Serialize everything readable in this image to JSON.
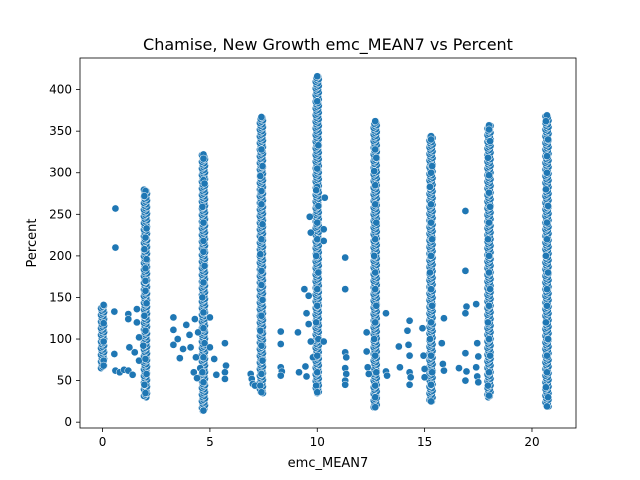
{
  "chart_data": {
    "type": "scatter",
    "title": "Chamise, New Growth emc_MEAN7 vs Percent",
    "xlabel": "emc_MEAN7",
    "ylabel": "Percent",
    "xlim": [
      -1.05,
      22.05
    ],
    "ylim": [
      -7,
      438
    ],
    "x_ticks": [
      0,
      5,
      10,
      15,
      20
    ],
    "y_ticks": [
      0,
      50,
      100,
      150,
      200,
      250,
      300,
      350,
      400
    ],
    "grid": false,
    "legend": "none",
    "marker_color": "#1f77b4",
    "marker_edge_color": "#ffffff",
    "columns": [
      {
        "x": 0.0,
        "min": 65,
        "max": 141
      },
      {
        "x": 2.0,
        "min": 30,
        "max": 280
      },
      {
        "x": 4.7,
        "min": 14,
        "max": 322
      },
      {
        "x": 7.4,
        "min": 35,
        "max": 367
      },
      {
        "x": 10.0,
        "min": 35,
        "max": 416
      },
      {
        "x": 12.7,
        "min": 18,
        "max": 362
      },
      {
        "x": 15.3,
        "min": 25,
        "max": 344
      },
      {
        "x": 18.0,
        "min": 30,
        "max": 357
      },
      {
        "x": 20.7,
        "min": 19,
        "max": 369
      }
    ],
    "points": [
      {
        "x": 0.05,
        "y": 141
      },
      {
        "x": 0.05,
        "y": 119
      },
      {
        "x": 0.05,
        "y": 97
      },
      {
        "x": 0.05,
        "y": 74
      },
      {
        "x": 0.05,
        "y": 68
      },
      {
        "x": 0.6,
        "y": 257
      },
      {
        "x": 0.6,
        "y": 210
      },
      {
        "x": 0.55,
        "y": 133
      },
      {
        "x": 0.55,
        "y": 82
      },
      {
        "x": 0.6,
        "y": 62
      },
      {
        "x": 0.8,
        "y": 60
      },
      {
        "x": 1.0,
        "y": 63
      },
      {
        "x": 1.2,
        "y": 62
      },
      {
        "x": 1.25,
        "y": 90
      },
      {
        "x": 1.2,
        "y": 130
      },
      {
        "x": 1.2,
        "y": 124
      },
      {
        "x": 1.4,
        "y": 57
      },
      {
        "x": 1.5,
        "y": 84
      },
      {
        "x": 1.6,
        "y": 120
      },
      {
        "x": 1.6,
        "y": 136
      },
      {
        "x": 1.7,
        "y": 102
      },
      {
        "x": 1.7,
        "y": 74
      },
      {
        "x": 2.0,
        "y": 278
      },
      {
        "x": 1.95,
        "y": 272
      },
      {
        "x": 2.05,
        "y": 233
      },
      {
        "x": 2.0,
        "y": 222
      },
      {
        "x": 1.95,
        "y": 208
      },
      {
        "x": 2.05,
        "y": 196
      },
      {
        "x": 2.0,
        "y": 185
      },
      {
        "x": 2.0,
        "y": 170
      },
      {
        "x": 2.0,
        "y": 158
      },
      {
        "x": 2.05,
        "y": 143
      },
      {
        "x": 1.95,
        "y": 128
      },
      {
        "x": 2.0,
        "y": 110
      },
      {
        "x": 1.9,
        "y": 92
      },
      {
        "x": 2.0,
        "y": 76
      },
      {
        "x": 2.05,
        "y": 58
      },
      {
        "x": 1.95,
        "y": 45
      },
      {
        "x": 2.0,
        "y": 35
      },
      {
        "x": 3.3,
        "y": 126
      },
      {
        "x": 3.3,
        "y": 111
      },
      {
        "x": 3.3,
        "y": 93
      },
      {
        "x": 3.5,
        "y": 100
      },
      {
        "x": 3.6,
        "y": 77
      },
      {
        "x": 3.75,
        "y": 88
      },
      {
        "x": 3.9,
        "y": 117
      },
      {
        "x": 4.05,
        "y": 105
      },
      {
        "x": 4.1,
        "y": 90
      },
      {
        "x": 4.25,
        "y": 60
      },
      {
        "x": 4.3,
        "y": 124
      },
      {
        "x": 4.35,
        "y": 78
      },
      {
        "x": 4.45,
        "y": 108
      },
      {
        "x": 4.55,
        "y": 65
      },
      {
        "x": 4.4,
        "y": 53
      },
      {
        "x": 4.7,
        "y": 322
      },
      {
        "x": 4.7,
        "y": 317
      },
      {
        "x": 4.7,
        "y": 291
      },
      {
        "x": 4.75,
        "y": 287
      },
      {
        "x": 4.65,
        "y": 259
      },
      {
        "x": 4.7,
        "y": 240
      },
      {
        "x": 4.7,
        "y": 218
      },
      {
        "x": 4.7,
        "y": 205
      },
      {
        "x": 4.75,
        "y": 188
      },
      {
        "x": 4.7,
        "y": 168
      },
      {
        "x": 4.65,
        "y": 150
      },
      {
        "x": 4.7,
        "y": 132
      },
      {
        "x": 4.7,
        "y": 113
      },
      {
        "x": 4.75,
        "y": 95
      },
      {
        "x": 4.7,
        "y": 78
      },
      {
        "x": 4.65,
        "y": 60
      },
      {
        "x": 4.7,
        "y": 48
      },
      {
        "x": 4.7,
        "y": 14
      },
      {
        "x": 5.0,
        "y": 126
      },
      {
        "x": 5.0,
        "y": 90
      },
      {
        "x": 5.2,
        "y": 76
      },
      {
        "x": 5.3,
        "y": 57
      },
      {
        "x": 5.7,
        "y": 95
      },
      {
        "x": 5.75,
        "y": 68
      },
      {
        "x": 5.7,
        "y": 60
      },
      {
        "x": 5.7,
        "y": 52
      },
      {
        "x": 6.9,
        "y": 58
      },
      {
        "x": 6.95,
        "y": 52
      },
      {
        "x": 7.0,
        "y": 46
      },
      {
        "x": 7.1,
        "y": 44
      },
      {
        "x": 7.4,
        "y": 367
      },
      {
        "x": 7.4,
        "y": 328
      },
      {
        "x": 7.45,
        "y": 308
      },
      {
        "x": 7.35,
        "y": 296
      },
      {
        "x": 7.4,
        "y": 278
      },
      {
        "x": 7.4,
        "y": 262
      },
      {
        "x": 7.45,
        "y": 238
      },
      {
        "x": 7.4,
        "y": 220
      },
      {
        "x": 7.35,
        "y": 202
      },
      {
        "x": 7.4,
        "y": 182
      },
      {
        "x": 7.4,
        "y": 165
      },
      {
        "x": 7.45,
        "y": 147
      },
      {
        "x": 7.4,
        "y": 128
      },
      {
        "x": 7.35,
        "y": 110
      },
      {
        "x": 7.4,
        "y": 92
      },
      {
        "x": 7.45,
        "y": 74
      },
      {
        "x": 7.4,
        "y": 58
      },
      {
        "x": 7.35,
        "y": 44
      },
      {
        "x": 7.4,
        "y": 36
      },
      {
        "x": 8.3,
        "y": 109
      },
      {
        "x": 8.3,
        "y": 94
      },
      {
        "x": 8.3,
        "y": 66
      },
      {
        "x": 8.35,
        "y": 61
      },
      {
        "x": 8.3,
        "y": 56
      },
      {
        "x": 9.1,
        "y": 108
      },
      {
        "x": 9.15,
        "y": 60
      },
      {
        "x": 9.4,
        "y": 160
      },
      {
        "x": 9.5,
        "y": 131
      },
      {
        "x": 9.45,
        "y": 67
      },
      {
        "x": 9.5,
        "y": 55
      },
      {
        "x": 9.7,
        "y": 228
      },
      {
        "x": 9.65,
        "y": 247
      },
      {
        "x": 9.6,
        "y": 152
      },
      {
        "x": 9.6,
        "y": 118
      },
      {
        "x": 9.7,
        "y": 97
      },
      {
        "x": 9.8,
        "y": 78
      },
      {
        "x": 10.0,
        "y": 416
      },
      {
        "x": 10.0,
        "y": 386
      },
      {
        "x": 10.05,
        "y": 333
      },
      {
        "x": 10.0,
        "y": 305
      },
      {
        "x": 10.0,
        "y": 283
      },
      {
        "x": 9.95,
        "y": 279
      },
      {
        "x": 10.05,
        "y": 260
      },
      {
        "x": 10.0,
        "y": 240
      },
      {
        "x": 10.0,
        "y": 220
      },
      {
        "x": 9.95,
        "y": 200
      },
      {
        "x": 10.05,
        "y": 180
      },
      {
        "x": 10.0,
        "y": 160
      },
      {
        "x": 10.0,
        "y": 140
      },
      {
        "x": 9.95,
        "y": 120
      },
      {
        "x": 10.05,
        "y": 100
      },
      {
        "x": 10.0,
        "y": 80
      },
      {
        "x": 10.0,
        "y": 60
      },
      {
        "x": 9.95,
        "y": 44
      },
      {
        "x": 10.0,
        "y": 36
      },
      {
        "x": 10.3,
        "y": 232
      },
      {
        "x": 10.3,
        "y": 218
      },
      {
        "x": 10.35,
        "y": 270
      },
      {
        "x": 10.3,
        "y": 97
      },
      {
        "x": 11.3,
        "y": 198
      },
      {
        "x": 11.3,
        "y": 160
      },
      {
        "x": 11.3,
        "y": 84
      },
      {
        "x": 11.35,
        "y": 78
      },
      {
        "x": 11.3,
        "y": 65
      },
      {
        "x": 11.35,
        "y": 58
      },
      {
        "x": 11.3,
        "y": 50
      },
      {
        "x": 11.3,
        "y": 45
      },
      {
        "x": 12.3,
        "y": 108
      },
      {
        "x": 12.3,
        "y": 85
      },
      {
        "x": 12.35,
        "y": 66
      },
      {
        "x": 12.4,
        "y": 58
      },
      {
        "x": 12.7,
        "y": 362
      },
      {
        "x": 12.7,
        "y": 328
      },
      {
        "x": 12.75,
        "y": 318
      },
      {
        "x": 12.65,
        "y": 302
      },
      {
        "x": 12.7,
        "y": 285
      },
      {
        "x": 12.7,
        "y": 262
      },
      {
        "x": 12.75,
        "y": 240
      },
      {
        "x": 12.7,
        "y": 220
      },
      {
        "x": 12.65,
        "y": 200
      },
      {
        "x": 12.7,
        "y": 180
      },
      {
        "x": 12.7,
        "y": 160
      },
      {
        "x": 12.75,
        "y": 140
      },
      {
        "x": 12.7,
        "y": 120
      },
      {
        "x": 12.65,
        "y": 100
      },
      {
        "x": 12.7,
        "y": 80
      },
      {
        "x": 12.75,
        "y": 60
      },
      {
        "x": 12.7,
        "y": 44
      },
      {
        "x": 12.7,
        "y": 30
      },
      {
        "x": 12.7,
        "y": 18
      },
      {
        "x": 13.2,
        "y": 131
      },
      {
        "x": 13.2,
        "y": 61
      },
      {
        "x": 13.25,
        "y": 56
      },
      {
        "x": 13.8,
        "y": 91
      },
      {
        "x": 13.85,
        "y": 66
      },
      {
        "x": 14.3,
        "y": 122
      },
      {
        "x": 14.2,
        "y": 110
      },
      {
        "x": 14.25,
        "y": 93
      },
      {
        "x": 14.3,
        "y": 80
      },
      {
        "x": 14.3,
        "y": 60
      },
      {
        "x": 14.35,
        "y": 54
      },
      {
        "x": 14.3,
        "y": 45
      },
      {
        "x": 14.9,
        "y": 113
      },
      {
        "x": 14.95,
        "y": 80
      },
      {
        "x": 15.0,
        "y": 64
      },
      {
        "x": 15.0,
        "y": 54
      },
      {
        "x": 15.3,
        "y": 344
      },
      {
        "x": 15.3,
        "y": 340
      },
      {
        "x": 15.35,
        "y": 308
      },
      {
        "x": 15.3,
        "y": 300
      },
      {
        "x": 15.25,
        "y": 283
      },
      {
        "x": 15.3,
        "y": 262
      },
      {
        "x": 15.3,
        "y": 240
      },
      {
        "x": 15.35,
        "y": 220
      },
      {
        "x": 15.3,
        "y": 200
      },
      {
        "x": 15.25,
        "y": 180
      },
      {
        "x": 15.3,
        "y": 160
      },
      {
        "x": 15.35,
        "y": 140
      },
      {
        "x": 15.3,
        "y": 120
      },
      {
        "x": 15.25,
        "y": 100
      },
      {
        "x": 15.3,
        "y": 80
      },
      {
        "x": 15.35,
        "y": 60
      },
      {
        "x": 15.3,
        "y": 45
      },
      {
        "x": 15.3,
        "y": 25
      },
      {
        "x": 15.8,
        "y": 95
      },
      {
        "x": 15.85,
        "y": 70
      },
      {
        "x": 15.9,
        "y": 62
      },
      {
        "x": 15.9,
        "y": 125
      },
      {
        "x": 16.6,
        "y": 65
      },
      {
        "x": 16.9,
        "y": 254
      },
      {
        "x": 16.9,
        "y": 182
      },
      {
        "x": 16.95,
        "y": 139
      },
      {
        "x": 16.9,
        "y": 131
      },
      {
        "x": 16.9,
        "y": 83
      },
      {
        "x": 16.95,
        "y": 61
      },
      {
        "x": 16.9,
        "y": 50
      },
      {
        "x": 17.4,
        "y": 142
      },
      {
        "x": 17.45,
        "y": 95
      },
      {
        "x": 17.5,
        "y": 79
      },
      {
        "x": 17.4,
        "y": 66
      },
      {
        "x": 17.45,
        "y": 55
      },
      {
        "x": 17.5,
        "y": 48
      },
      {
        "x": 18.0,
        "y": 357
      },
      {
        "x": 18.0,
        "y": 352
      },
      {
        "x": 18.05,
        "y": 338
      },
      {
        "x": 17.95,
        "y": 318
      },
      {
        "x": 18.0,
        "y": 297
      },
      {
        "x": 18.0,
        "y": 276
      },
      {
        "x": 18.05,
        "y": 259
      },
      {
        "x": 18.0,
        "y": 240
      },
      {
        "x": 17.95,
        "y": 220
      },
      {
        "x": 18.0,
        "y": 200
      },
      {
        "x": 18.0,
        "y": 180
      },
      {
        "x": 18.05,
        "y": 160
      },
      {
        "x": 18.0,
        "y": 140
      },
      {
        "x": 17.95,
        "y": 120
      },
      {
        "x": 18.0,
        "y": 100
      },
      {
        "x": 18.05,
        "y": 80
      },
      {
        "x": 18.0,
        "y": 60
      },
      {
        "x": 17.95,
        "y": 44
      },
      {
        "x": 18.0,
        "y": 32
      },
      {
        "x": 20.7,
        "y": 369
      },
      {
        "x": 20.65,
        "y": 362
      },
      {
        "x": 20.75,
        "y": 340
      },
      {
        "x": 20.7,
        "y": 320
      },
      {
        "x": 20.7,
        "y": 300
      },
      {
        "x": 20.65,
        "y": 280
      },
      {
        "x": 20.75,
        "y": 260
      },
      {
        "x": 20.7,
        "y": 240
      },
      {
        "x": 20.7,
        "y": 220
      },
      {
        "x": 20.65,
        "y": 200
      },
      {
        "x": 20.75,
        "y": 180
      },
      {
        "x": 20.7,
        "y": 160
      },
      {
        "x": 20.7,
        "y": 140
      },
      {
        "x": 20.65,
        "y": 120
      },
      {
        "x": 20.75,
        "y": 100
      },
      {
        "x": 20.7,
        "y": 80
      },
      {
        "x": 20.7,
        "y": 60
      },
      {
        "x": 20.65,
        "y": 42
      },
      {
        "x": 20.75,
        "y": 30
      },
      {
        "x": 20.7,
        "y": 19
      }
    ]
  }
}
